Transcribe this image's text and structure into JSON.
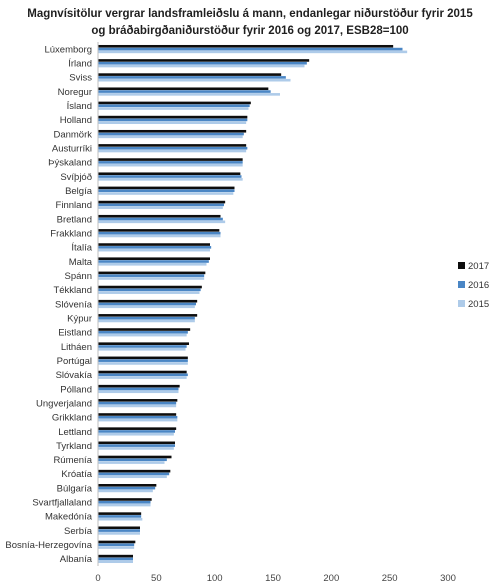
{
  "chart_data": {
    "type": "bar",
    "orientation": "horizontal",
    "title_line1": "Magnvísitölur vergrar landsframleiðslu á mann, endanlegar niðurstöður fyrir 2015",
    "title_line2": "og  bráðabirgðaniðurstöður fyrir 2016 og 2017, ESB28=100",
    "xlim": [
      0,
      300
    ],
    "x_ticks": [
      "0",
      "50",
      "100",
      "150",
      "200",
      "250",
      "300"
    ],
    "grid": false,
    "legend_position": "right",
    "categories": [
      "Lúxemborg",
      "Írland",
      "Sviss",
      "Noregur",
      "Ísland",
      "Holland",
      "Danmörk",
      "Austurríki",
      "Þýskaland",
      "Svíþjóð",
      "Belgía",
      "Finnland",
      "Bretland",
      "Frakkland",
      "Ítalía",
      "Malta",
      "Spánn",
      "Tékkland",
      "Slóvenía",
      "Kýpur",
      "Eistland",
      "Litháen",
      "Portúgal",
      "Slóvakía",
      "Pólland",
      "Ungverjaland",
      "Grikkland",
      "Lettland",
      "Tyrkland",
      "Rúmenía",
      "Króatía",
      "Búlgaría",
      "Svartfjallaland",
      "Makedónía",
      "Serbía",
      "Bosnía-Herzegovína",
      "Albanía"
    ],
    "series": [
      {
        "name": "2017",
        "color": "#0d0d0d",
        "values": [
          253,
          181,
          157,
          146,
          131,
          128,
          127,
          127,
          124,
          122,
          117,
          109,
          105,
          104,
          96,
          96,
          92,
          89,
          85,
          85,
          79,
          78,
          77,
          76,
          70,
          68,
          67,
          67,
          66,
          63,
          62,
          50,
          46,
          37,
          36,
          32,
          30
        ]
      },
      {
        "name": "2016",
        "color": "#4a86c5",
        "values": [
          261,
          179,
          161,
          148,
          130,
          128,
          125,
          128,
          124,
          123,
          117,
          108,
          107,
          105,
          97,
          95,
          91,
          88,
          84,
          83,
          77,
          76,
          77,
          77,
          69,
          67,
          68,
          66,
          66,
          59,
          61,
          49,
          45,
          37,
          36,
          31,
          30
        ]
      },
      {
        "name": "2015",
        "color": "#aecbe9",
        "values": [
          265,
          177,
          165,
          156,
          129,
          127,
          124,
          127,
          124,
          124,
          116,
          107,
          109,
          105,
          96,
          93,
          91,
          87,
          83,
          83,
          76,
          75,
          77,
          76,
          69,
          67,
          68,
          65,
          65,
          57,
          59,
          47,
          45,
          38,
          36,
          31,
          30
        ]
      }
    ]
  }
}
